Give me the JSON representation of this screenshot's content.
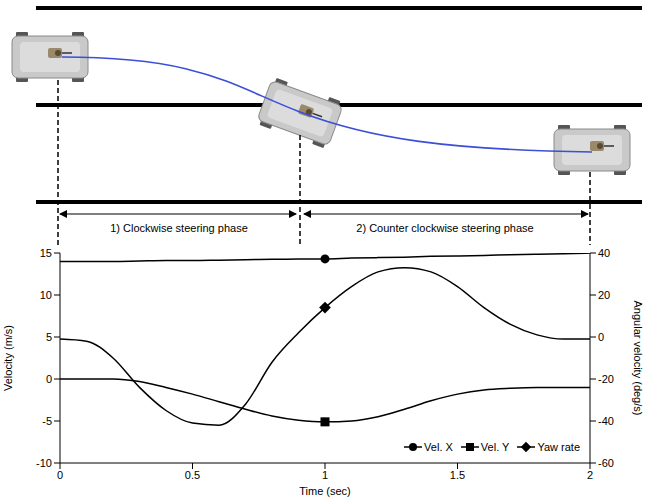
{
  "chart_data": {
    "type": "line",
    "x_label": "Time (sec)",
    "y_label": "Velocity (m/s)",
    "y2_label": "Angular velocity (deg/s)",
    "x": [
      0,
      0.1,
      0.2,
      0.3,
      0.4,
      0.5,
      0.6,
      0.7,
      0.8,
      0.9,
      1,
      1.1,
      1.2,
      1.3,
      1.4,
      1.5,
      1.6,
      1.7,
      1.8,
      1.9,
      2
    ],
    "series": [
      {
        "name": "Vel. X",
        "color": "#000000",
        "marker": "circle",
        "values": [
          14,
          14,
          14,
          14.05,
          14.1,
          14.1,
          14.15,
          14.2,
          14.25,
          14.3,
          14.3,
          14.4,
          14.45,
          14.5,
          14.6,
          14.65,
          14.7,
          14.8,
          14.85,
          14.9,
          15
        ]
      },
      {
        "name": "Vel. Y",
        "color": "#000000",
        "marker": "square",
        "values": [
          0,
          0,
          0,
          -0.3,
          -1,
          -1.8,
          -2.7,
          -3.6,
          -4.4,
          -4.9,
          -5.1,
          -5,
          -4.5,
          -3.6,
          -2.6,
          -1.8,
          -1.3,
          -1.1,
          -1,
          -1,
          -1
        ]
      },
      {
        "name": "Yaw rate",
        "color": "#000000",
        "marker": "diamond",
        "axis": "y2",
        "values": [
          -1,
          -2,
          -10,
          -24,
          -35,
          -41,
          -42,
          -32,
          -12,
          2,
          14,
          24,
          31,
          33,
          31,
          24,
          14,
          6,
          1,
          -1,
          -1
        ]
      }
    ],
    "xlim": [
      0,
      2
    ],
    "xticks": [
      0,
      0.5,
      1,
      1.5,
      2
    ],
    "ylim": [
      -10,
      15
    ],
    "yticks": [
      -10,
      -5,
      0,
      5,
      10,
      15
    ],
    "y2lim": [
      -60,
      40
    ],
    "y2ticks": [
      -60,
      -40,
      -20,
      0,
      20,
      40
    ],
    "grid": false,
    "legend": "lower right"
  },
  "diagram": {
    "phases": [
      "1) Clockwise steering phase",
      "2) Counter clockwise steering phase"
    ]
  }
}
